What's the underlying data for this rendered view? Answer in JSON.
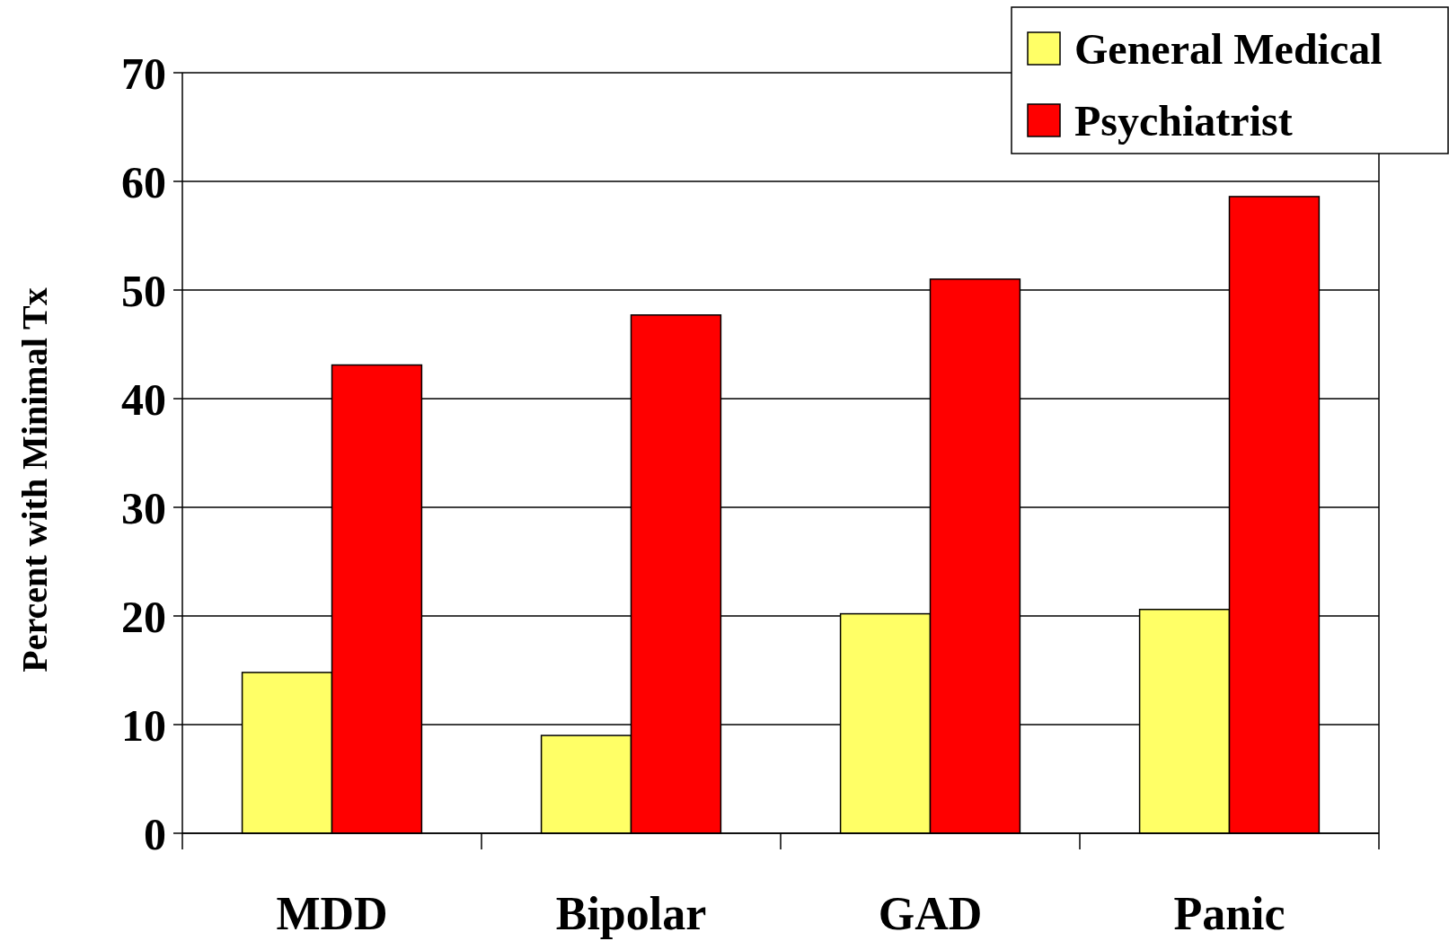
{
  "chart_data": {
    "type": "bar",
    "ylabel": "Percent with Minimal Tx",
    "categories": [
      "MDD",
      "Bipolar",
      "GAD",
      "Panic"
    ],
    "series": [
      {
        "name": "General Medical",
        "color": "#ffff66",
        "values": [
          14.8,
          9.0,
          20.2,
          20.6
        ]
      },
      {
        "name": "Psychiatrist",
        "color": "#ff0000",
        "values": [
          43.1,
          47.7,
          51.0,
          58.6
        ]
      }
    ],
    "ylim": [
      0,
      70
    ],
    "yticks": [
      0,
      10,
      20,
      30,
      40,
      50,
      60,
      70
    ],
    "grid": "y",
    "legend": "top right"
  }
}
